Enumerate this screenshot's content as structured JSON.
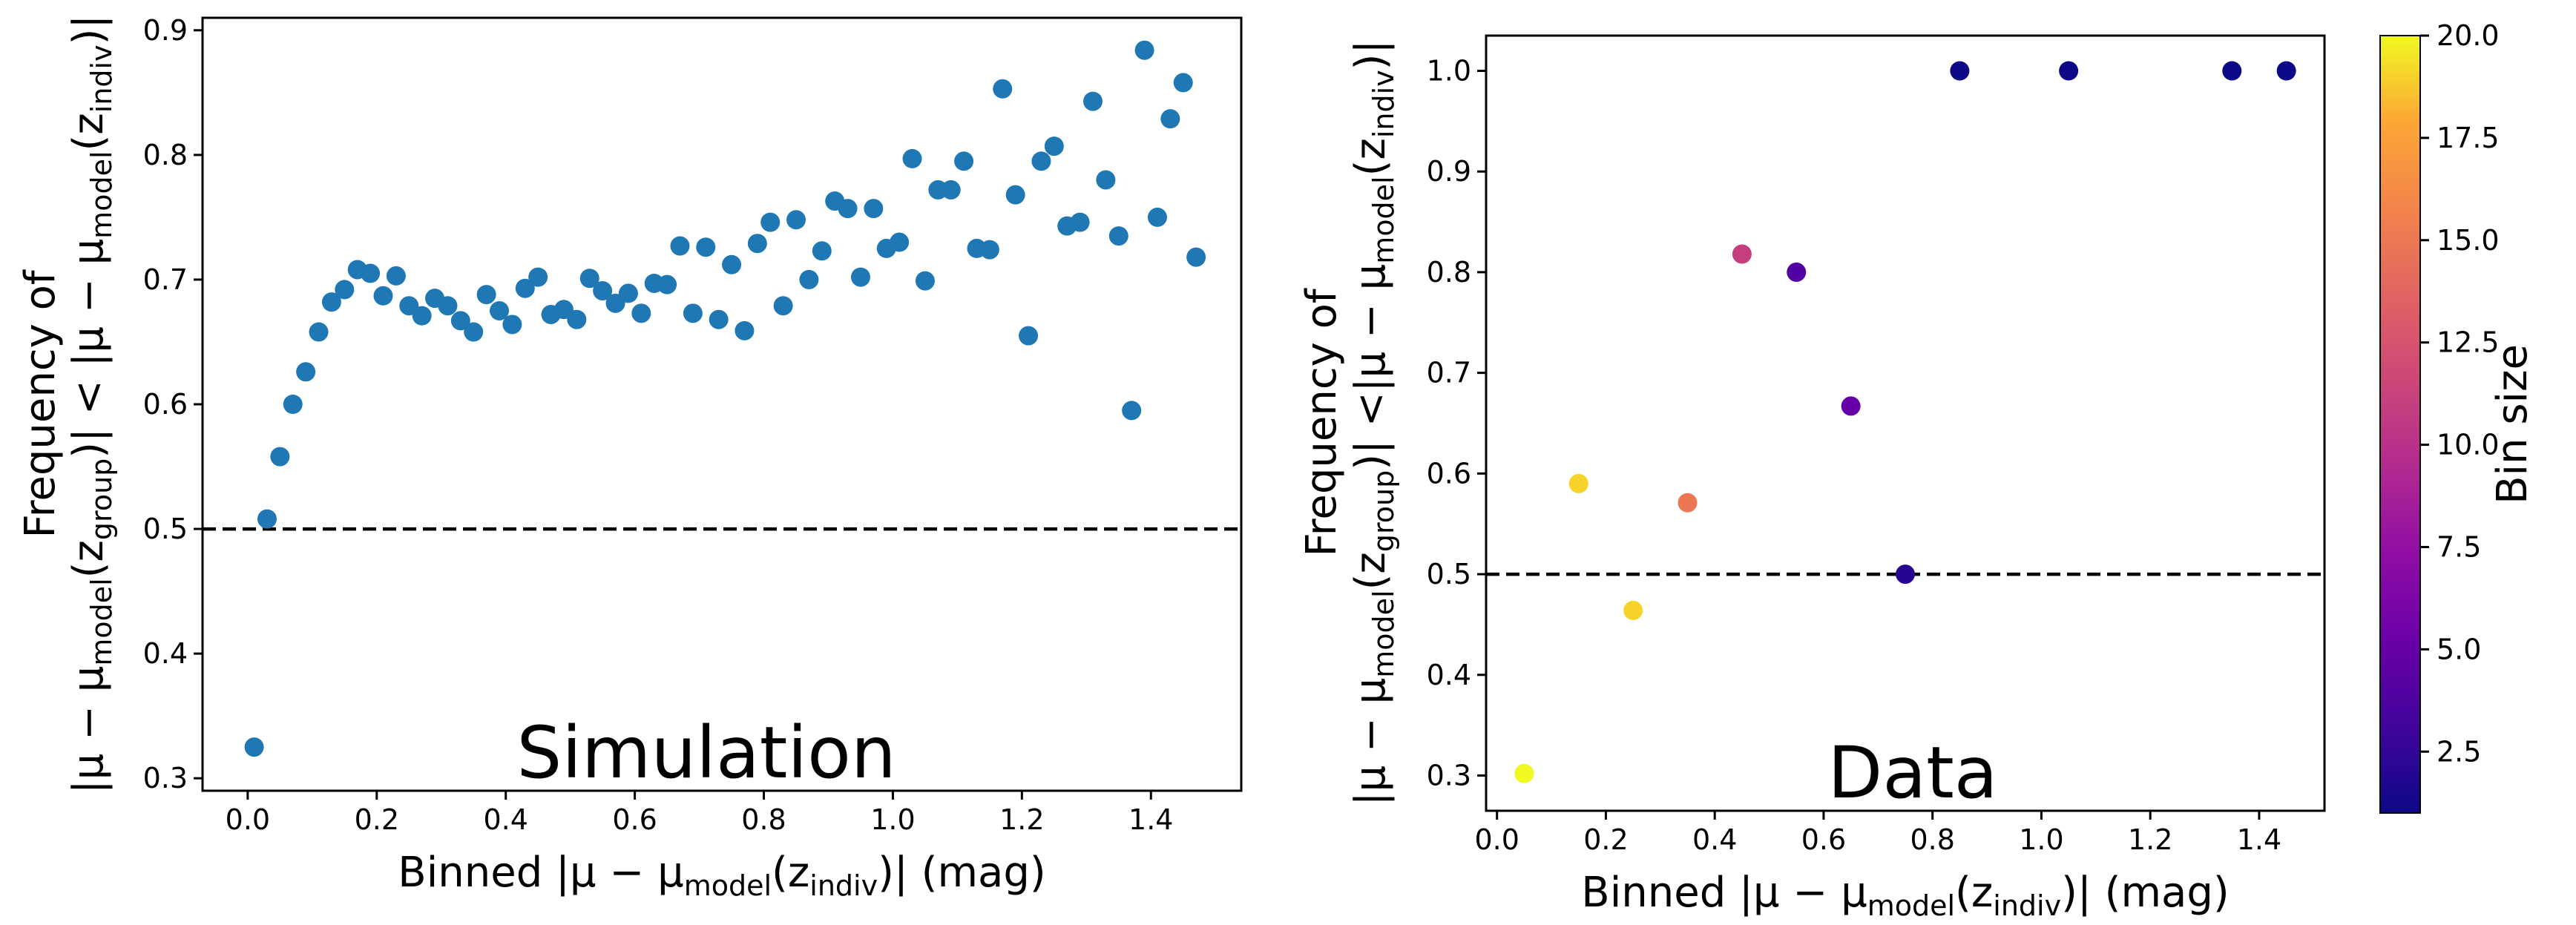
{
  "chart_data": [
    {
      "type": "scatter",
      "panel_label": "Simulation",
      "xlabel": "Binned |μ − μmodel(zindiv)| (mag)",
      "xlabel_parts": {
        "a": "Binned |μ − μ",
        "sub1": "model",
        "b": "(z",
        "sub2": "indiv",
        "c": ")| (mag)"
      },
      "ylabel_line1": "Frequency of",
      "ylabel_line2": "|μ − μmodel(zgroup)| < |μ − μmodel(zindiv)|",
      "ylabel_parts": {
        "a": "|μ − μ",
        "sub1": "model",
        "b": "(z",
        "sub2": "group",
        "c": ")| < |μ − μ",
        "sub3": "model",
        "d": "(z",
        "sub4": "indiv",
        "e": ")|"
      },
      "xlim": [
        -0.07,
        1.54
      ],
      "ylim": [
        0.29,
        0.91
      ],
      "xticks": [
        0.0,
        0.2,
        0.4,
        0.6,
        0.8,
        1.0,
        1.2,
        1.4
      ],
      "xtick_labels": [
        "0.0",
        "0.2",
        "0.4",
        "0.6",
        "0.8",
        "1.0",
        "1.2",
        "1.4"
      ],
      "yticks": [
        0.3,
        0.4,
        0.5,
        0.6,
        0.7,
        0.8,
        0.9
      ],
      "ytick_labels": [
        "0.3",
        "0.4",
        "0.5",
        "0.6",
        "0.7",
        "0.8",
        "0.9"
      ],
      "reference_line_y": 0.5,
      "point_color": "#1f77b4",
      "x": [
        0.01,
        0.03,
        0.05,
        0.07,
        0.09,
        0.11,
        0.13,
        0.15,
        0.17,
        0.19,
        0.21,
        0.23,
        0.25,
        0.27,
        0.29,
        0.31,
        0.33,
        0.35,
        0.37,
        0.39,
        0.41,
        0.43,
        0.45,
        0.47,
        0.49,
        0.51,
        0.53,
        0.55,
        0.57,
        0.59,
        0.61,
        0.63,
        0.65,
        0.67,
        0.69,
        0.71,
        0.73,
        0.75,
        0.77,
        0.79,
        0.81,
        0.83,
        0.85,
        0.87,
        0.89,
        0.91,
        0.93,
        0.95,
        0.97,
        0.99,
        1.01,
        1.03,
        1.05,
        1.07,
        1.09,
        1.11,
        1.13,
        1.15,
        1.17,
        1.19,
        1.21,
        1.23,
        1.25,
        1.27,
        1.29,
        1.31,
        1.33,
        1.35,
        1.37,
        1.39,
        1.41,
        1.43,
        1.45,
        1.47
      ],
      "y": [
        0.325,
        0.508,
        0.558,
        0.6,
        0.626,
        0.658,
        0.682,
        0.692,
        0.708,
        0.705,
        0.687,
        0.703,
        0.679,
        0.671,
        0.685,
        0.679,
        0.667,
        0.658,
        0.688,
        0.675,
        0.664,
        0.693,
        0.702,
        0.672,
        0.676,
        0.668,
        0.701,
        0.691,
        0.681,
        0.689,
        0.673,
        0.697,
        0.696,
        0.727,
        0.673,
        0.726,
        0.668,
        0.712,
        0.659,
        0.729,
        0.746,
        0.679,
        0.748,
        0.7,
        0.723,
        0.763,
        0.757,
        0.702,
        0.757,
        0.725,
        0.73,
        0.797,
        0.699,
        0.772,
        0.772,
        0.795,
        0.725,
        0.724,
        0.853,
        0.768,
        0.655,
        0.795,
        0.807,
        0.743,
        0.746,
        0.843,
        0.78,
        0.735,
        0.595,
        0.884,
        0.75,
        0.829,
        0.858,
        0.718
      ]
    },
    {
      "type": "scatter",
      "panel_label": "Data",
      "xlabel": "Binned |μ − μmodel(zindiv)| (mag)",
      "xlabel_parts": {
        "a": "Binned |μ − μ",
        "sub1": "model",
        "b": "(z",
        "sub2": "indiv",
        "c": ")| (mag)"
      },
      "ylabel_line1": "Frequency of",
      "ylabel_line2": "|μ − μmodel(zgroup)| <|μ − μmodel(zindiv)|",
      "ylabel_parts": {
        "a": "|μ − μ",
        "sub1": "model",
        "b": "(z",
        "sub2": "group",
        "c": ")| <|μ − μ",
        "sub3": "model",
        "d": "(z",
        "sub4": "indiv",
        "e": ")|"
      },
      "xlim": [
        -0.02,
        1.52
      ],
      "ylim": [
        0.265,
        1.035
      ],
      "xticks": [
        0.0,
        0.2,
        0.4,
        0.6,
        0.8,
        1.0,
        1.2,
        1.4
      ],
      "xtick_labels": [
        "0.0",
        "0.2",
        "0.4",
        "0.6",
        "0.8",
        "1.0",
        "1.2",
        "1.4"
      ],
      "yticks": [
        0.3,
        0.4,
        0.5,
        0.6,
        0.7,
        0.8,
        0.9,
        1.0
      ],
      "ytick_labels": [
        "0.3",
        "0.4",
        "0.5",
        "0.6",
        "0.7",
        "0.8",
        "0.9",
        "1.0"
      ],
      "reference_line_y": 0.5,
      "x": [
        0.05,
        0.15,
        0.25,
        0.35,
        0.45,
        0.55,
        0.65,
        0.75,
        0.85,
        1.05,
        1.35,
        1.45
      ],
      "y": [
        0.302,
        0.59,
        0.464,
        0.571,
        0.818,
        0.8,
        0.667,
        0.5,
        1.0,
        1.0,
        1.0,
        1.0
      ],
      "bin_size": [
        20,
        19,
        19,
        15,
        11,
        4,
        5,
        2,
        1,
        1,
        1,
        1
      ],
      "colorbar": {
        "label": "Bin size",
        "colormap": "plasma",
        "range": [
          1,
          20
        ],
        "ticks": [
          2.5,
          5.0,
          7.5,
          10.0,
          12.5,
          15.0,
          17.5,
          20.0
        ],
        "tick_labels": [
          "2.5",
          "5.0",
          "7.5",
          "10.0",
          "12.5",
          "15.0",
          "17.5",
          "20.0"
        ]
      }
    }
  ]
}
